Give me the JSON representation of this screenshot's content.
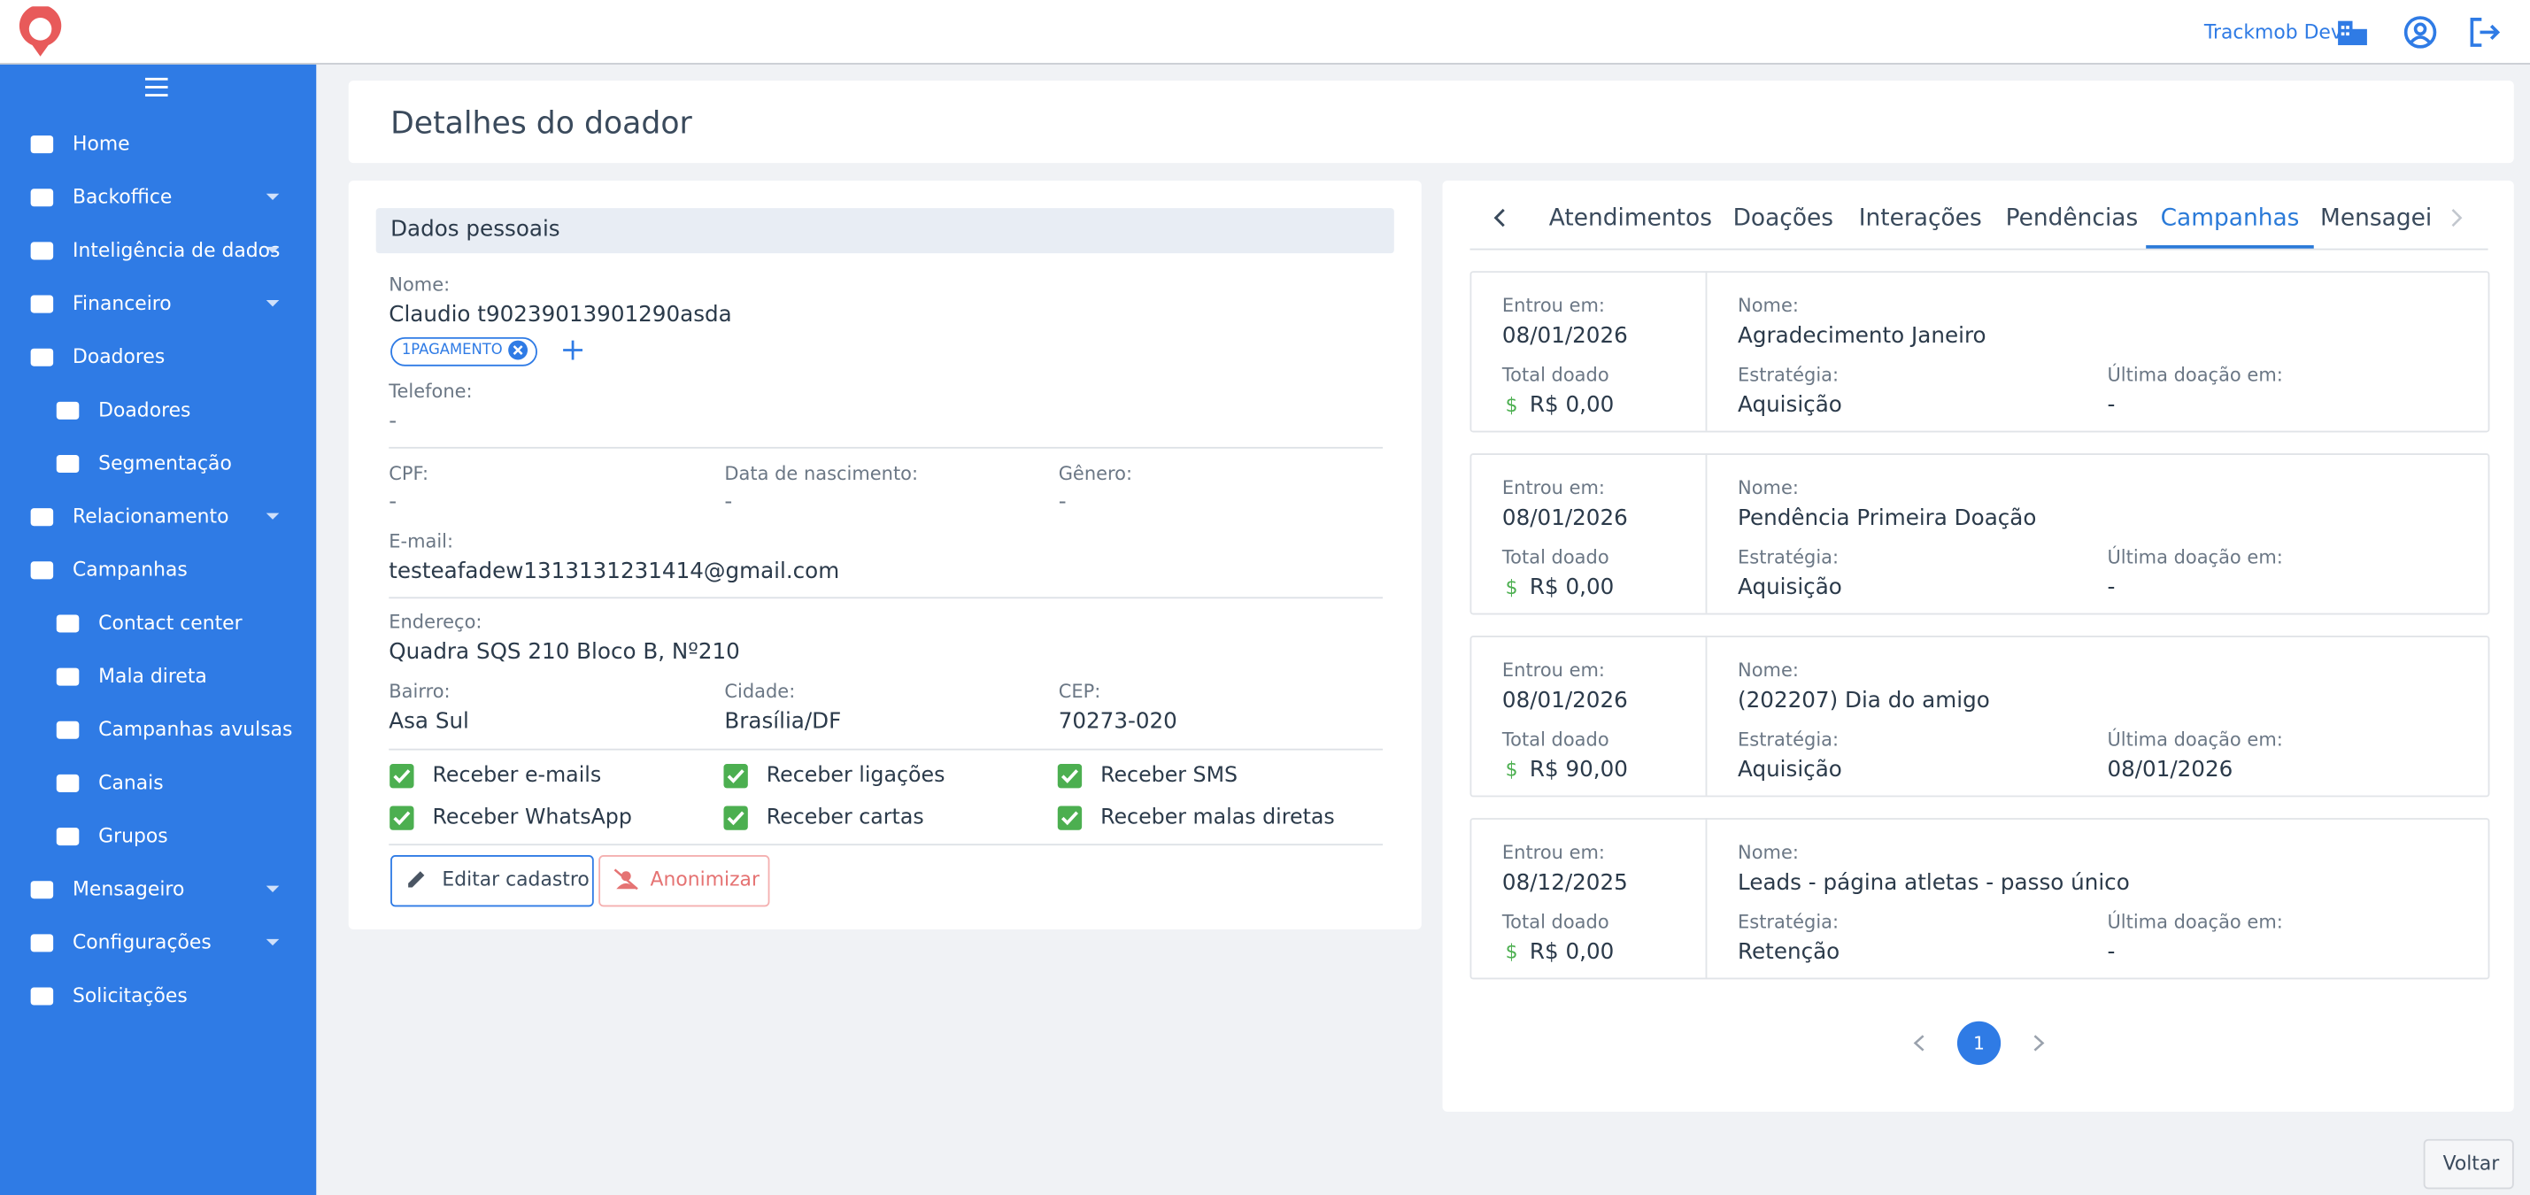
{
  "header": {
    "account": "Trackmob Dev"
  },
  "sidebar": {
    "items": [
      {
        "label": "Home"
      },
      {
        "label": "Backoffice",
        "expandable": true
      },
      {
        "label": "Inteligência de dados",
        "expandable": true
      },
      {
        "label": "Financeiro",
        "expandable": true
      },
      {
        "label": "Doadores"
      },
      {
        "label": "Doadores",
        "sub": true
      },
      {
        "label": "Segmentação",
        "sub": true
      },
      {
        "label": "Relacionamento",
        "expandable": true
      },
      {
        "label": "Campanhas"
      },
      {
        "label": "Contact center",
        "sub": true
      },
      {
        "label": "Mala direta",
        "sub": true
      },
      {
        "label": "Campanhas avulsas",
        "sub": true
      },
      {
        "label": "Canais",
        "sub": true
      },
      {
        "label": "Grupos",
        "sub": true
      },
      {
        "label": "Mensageiro",
        "expandable": true
      },
      {
        "label": "Configurações",
        "expandable": true
      },
      {
        "label": "Solicitações"
      }
    ]
  },
  "page": {
    "title": "Detalhes do doador",
    "back": "Voltar"
  },
  "personal": {
    "title": "Dados pessoais",
    "name_label": "Nome:",
    "name": "Claudio t90239013901290asda",
    "tag": "1PAGAMENTO",
    "phone_label": "Telefone:",
    "phone": "-",
    "cpf_label": "CPF:",
    "cpf": "-",
    "birth_label": "Data de nascimento:",
    "birth": "-",
    "gender_label": "Gênero:",
    "gender": "-",
    "email_label": "E-mail:",
    "email": "testeafadew1313131231414@gmail.com",
    "address_label": "Endereço:",
    "address": "Quadra SQS 210 Bloco B, Nº210",
    "district_label": "Bairro:",
    "district": "Asa Sul",
    "city_label": "Cidade:",
    "city": "Brasília/DF",
    "zip_label": "CEP:",
    "zip": "70273-020",
    "preferences": [
      {
        "label": "Receber e-mails",
        "checked": true
      },
      {
        "label": "Receber ligações",
        "checked": true
      },
      {
        "label": "Receber SMS",
        "checked": true
      },
      {
        "label": "Receber WhatsApp",
        "checked": true
      },
      {
        "label": "Receber cartas",
        "checked": true
      },
      {
        "label": "Receber malas diretas",
        "checked": true
      }
    ],
    "edit": "Editar cadastro",
    "anonymize": "Anonimizar"
  },
  "tabs": {
    "items": [
      "Atendimentos",
      "Doações",
      "Interações",
      "Pendências",
      "Campanhas",
      "Mensagei"
    ],
    "active": 4
  },
  "campaigns": {
    "labels": {
      "entered": "Entrou em:",
      "total": "Total doado",
      "name": "Nome:",
      "strategy": "Estratégia:",
      "last": "Última doação em:"
    },
    "currency_symbol": "$",
    "items": [
      {
        "entered": "08/01/2026",
        "total": "R$ 0,00",
        "name": "Agradecimento Janeiro",
        "strategy": "Aquisição",
        "last": "-"
      },
      {
        "entered": "08/01/2026",
        "total": "R$ 0,00",
        "name": "Pendência Primeira Doação",
        "strategy": "Aquisição",
        "last": "-"
      },
      {
        "entered": "08/01/2026",
        "total": "R$ 90,00",
        "name": "(202207) Dia do amigo",
        "strategy": "Aquisição",
        "last": "08/01/2026"
      },
      {
        "entered": "08/12/2025",
        "total": "R$ 0,00",
        "name": "Leads - página atletas - passo único",
        "strategy": "Retenção",
        "last": "-"
      }
    ],
    "page": 1
  }
}
